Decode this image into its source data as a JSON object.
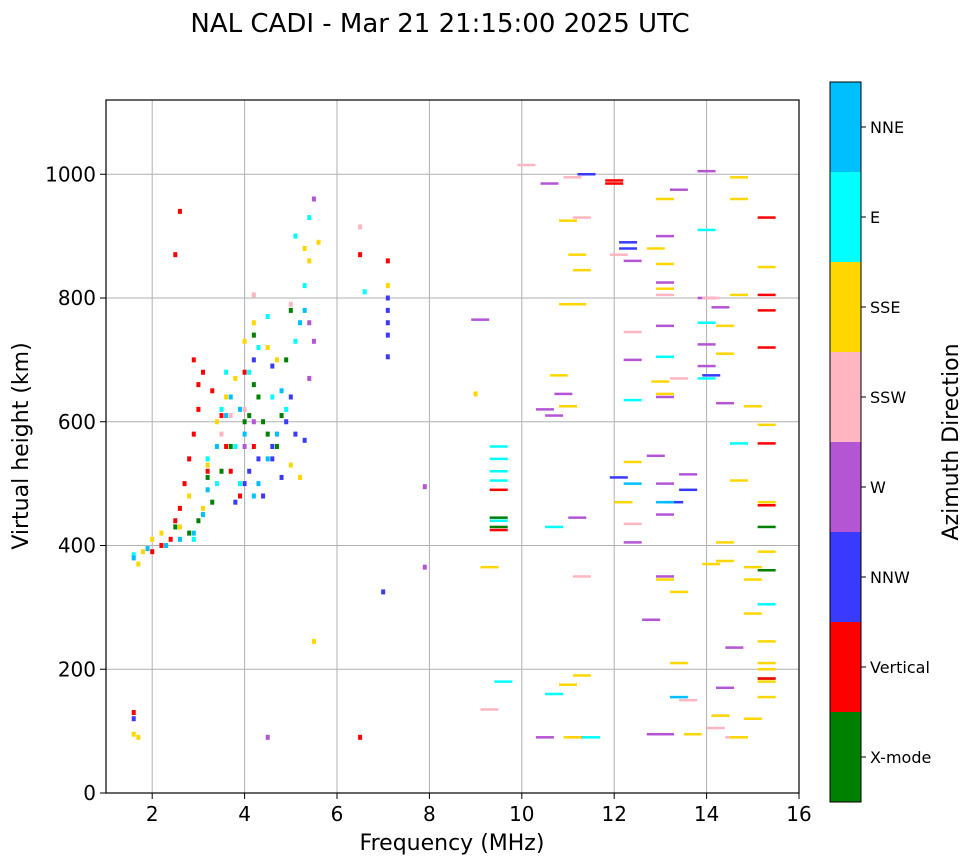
{
  "chart_data": {
    "type": "scatter",
    "title": "NAL CADI - Mar 21 21:15:00 2025 UTC",
    "xlabel": "Frequency (MHz)",
    "ylabel": "Virtual height (km)",
    "xlim": [
      1,
      16
    ],
    "ylim": [
      0,
      1120
    ],
    "xticks": [
      2,
      4,
      6,
      8,
      10,
      12,
      14,
      16
    ],
    "yticks": [
      0,
      200,
      400,
      600,
      800,
      1000
    ],
    "grid": true,
    "colorbar": {
      "label": "Azimuth Direction",
      "position": "right",
      "categories": [
        {
          "name": "X-mode",
          "color": "#008000"
        },
        {
          "name": "Vertical",
          "color": "#ff0000"
        },
        {
          "name": "NNW",
          "color": "#3a3aff"
        },
        {
          "name": "W",
          "color": "#b455d4"
        },
        {
          "name": "SSW",
          "color": "#ffb6c1"
        },
        {
          "name": "SSE",
          "color": "#ffd700"
        },
        {
          "name": "E",
          "color": "#00ffff"
        },
        {
          "name": "NNE",
          "color": "#00bfff"
        }
      ]
    },
    "series": [
      {
        "name": "X-mode",
        "points": [
          [
            2.8,
            420
          ],
          [
            3.0,
            440
          ],
          [
            3.3,
            470
          ],
          [
            3.5,
            520
          ],
          [
            3.7,
            560
          ],
          [
            4.0,
            600
          ],
          [
            4.1,
            610
          ],
          [
            4.2,
            660
          ],
          [
            4.3,
            640
          ],
          [
            4.4,
            600
          ],
          [
            4.5,
            580
          ],
          [
            4.7,
            560
          ],
          [
            4.8,
            610
          ],
          [
            4.9,
            700
          ],
          [
            5.0,
            780
          ],
          [
            2.3,
            400
          ],
          [
            2.5,
            430
          ],
          [
            3.2,
            510
          ],
          [
            9.5,
            430
          ],
          [
            9.5,
            445
          ],
          [
            15.3,
            430
          ],
          [
            15.3,
            360
          ],
          [
            15.3,
            185
          ],
          [
            4.2,
            740
          ]
        ]
      },
      {
        "name": "Vertical",
        "points": [
          [
            1.6,
            130
          ],
          [
            2.0,
            390
          ],
          [
            2.2,
            400
          ],
          [
            2.4,
            410
          ],
          [
            2.5,
            440
          ],
          [
            2.6,
            460
          ],
          [
            2.7,
            500
          ],
          [
            2.8,
            540
          ],
          [
            2.9,
            580
          ],
          [
            3.0,
            620
          ],
          [
            3.0,
            660
          ],
          [
            3.1,
            680
          ],
          [
            3.3,
            650
          ],
          [
            3.5,
            610
          ],
          [
            3.6,
            560
          ],
          [
            3.7,
            520
          ],
          [
            3.9,
            480
          ],
          [
            4.0,
            680
          ],
          [
            4.2,
            560
          ],
          [
            3.2,
            520
          ],
          [
            2.9,
            700
          ],
          [
            2.6,
            940
          ],
          [
            2.5,
            870
          ],
          [
            6.5,
            870
          ],
          [
            6.5,
            90
          ],
          [
            7.1,
            860
          ],
          [
            9.5,
            425
          ],
          [
            9.5,
            490
          ],
          [
            12.0,
            990
          ],
          [
            12.0,
            985
          ],
          [
            15.3,
            930
          ],
          [
            15.3,
            805
          ],
          [
            15.3,
            780
          ],
          [
            15.3,
            720
          ],
          [
            15.3,
            565
          ],
          [
            15.3,
            465
          ],
          [
            15.3,
            185
          ]
        ]
      },
      {
        "name": "NNW",
        "points": [
          [
            1.6,
            120
          ],
          [
            3.8,
            470
          ],
          [
            4.0,
            500
          ],
          [
            4.1,
            520
          ],
          [
            4.3,
            540
          ],
          [
            4.4,
            480
          ],
          [
            4.6,
            560
          ],
          [
            4.6,
            540
          ],
          [
            4.8,
            510
          ],
          [
            4.9,
            600
          ],
          [
            5.0,
            640
          ],
          [
            5.1,
            580
          ],
          [
            5.3,
            570
          ],
          [
            4.2,
            700
          ],
          [
            4.6,
            690
          ],
          [
            7.1,
            800
          ],
          [
            7.1,
            780
          ],
          [
            7.1,
            760
          ],
          [
            7.1,
            740
          ],
          [
            7.1,
            705
          ],
          [
            11.4,
            1000
          ],
          [
            12.3,
            890
          ],
          [
            12.3,
            880
          ],
          [
            12.1,
            510
          ],
          [
            13.3,
            470
          ],
          [
            13.6,
            490
          ],
          [
            14.1,
            675
          ],
          [
            7.0,
            325
          ]
        ]
      },
      {
        "name": "W",
        "points": [
          [
            4.0,
            560
          ],
          [
            4.2,
            600
          ],
          [
            5.4,
            760
          ],
          [
            5.5,
            730
          ],
          [
            5.5,
            960
          ],
          [
            5.4,
            670
          ],
          [
            4.5,
            90
          ],
          [
            7.9,
            495
          ],
          [
            7.9,
            365
          ],
          [
            9.1,
            765
          ],
          [
            10.5,
            620
          ],
          [
            10.6,
            985
          ],
          [
            10.7,
            610
          ],
          [
            10.9,
            645
          ],
          [
            11.2,
            445
          ],
          [
            12.4,
            700
          ],
          [
            12.4,
            860
          ],
          [
            12.4,
            405
          ],
          [
            12.8,
            280
          ],
          [
            12.9,
            545
          ],
          [
            13.1,
            900
          ],
          [
            13.1,
            825
          ],
          [
            13.1,
            755
          ],
          [
            13.1,
            640
          ],
          [
            13.1,
            500
          ],
          [
            13.1,
            450
          ],
          [
            13.1,
            350
          ],
          [
            13.1,
            95
          ],
          [
            13.4,
            975
          ],
          [
            13.6,
            515
          ],
          [
            14.0,
            1005
          ],
          [
            14.0,
            800
          ],
          [
            14.0,
            725
          ],
          [
            14.0,
            690
          ],
          [
            14.3,
            785
          ],
          [
            14.4,
            630
          ],
          [
            14.6,
            235
          ],
          [
            14.4,
            170
          ],
          [
            10.5,
            90
          ],
          [
            11.2,
            90
          ],
          [
            12.9,
            95
          ]
        ]
      },
      {
        "name": "SSW",
        "points": [
          [
            3.5,
            580
          ],
          [
            3.7,
            610
          ],
          [
            4.0,
            620
          ],
          [
            4.2,
            805
          ],
          [
            5.0,
            790
          ],
          [
            6.5,
            915
          ],
          [
            9.3,
            135
          ],
          [
            10.1,
            1015
          ],
          [
            11.1,
            995
          ],
          [
            11.3,
            930
          ],
          [
            11.3,
            350
          ],
          [
            12.1,
            870
          ],
          [
            12.4,
            745
          ],
          [
            12.4,
            435
          ],
          [
            13.1,
            805
          ],
          [
            13.4,
            670
          ],
          [
            13.6,
            150
          ],
          [
            14.1,
            800
          ],
          [
            14.2,
            105
          ],
          [
            14.3,
            125
          ],
          [
            14.6,
            90
          ]
        ]
      },
      {
        "name": "SSE",
        "points": [
          [
            1.6,
            95
          ],
          [
            1.7,
            90
          ],
          [
            1.7,
            370
          ],
          [
            1.8,
            390
          ],
          [
            2.0,
            410
          ],
          [
            2.2,
            420
          ],
          [
            2.6,
            430
          ],
          [
            2.8,
            480
          ],
          [
            3.1,
            460
          ],
          [
            3.2,
            530
          ],
          [
            3.4,
            600
          ],
          [
            3.6,
            640
          ],
          [
            3.8,
            670
          ],
          [
            4.0,
            730
          ],
          [
            4.2,
            760
          ],
          [
            4.5,
            720
          ],
          [
            4.7,
            700
          ],
          [
            5.0,
            530
          ],
          [
            5.2,
            510
          ],
          [
            5.3,
            880
          ],
          [
            5.4,
            860
          ],
          [
            5.6,
            890
          ],
          [
            5.5,
            245
          ],
          [
            7.1,
            820
          ],
          [
            9.0,
            645
          ],
          [
            9.3,
            365
          ],
          [
            10.8,
            675
          ],
          [
            11.0,
            925
          ],
          [
            11.0,
            790
          ],
          [
            11.0,
            625
          ],
          [
            11.0,
            175
          ],
          [
            11.1,
            90
          ],
          [
            11.2,
            790
          ],
          [
            11.2,
            870
          ],
          [
            11.3,
            845
          ],
          [
            11.3,
            190
          ],
          [
            12.2,
            470
          ],
          [
            12.4,
            535
          ],
          [
            12.9,
            880
          ],
          [
            13.0,
            665
          ],
          [
            13.1,
            960
          ],
          [
            13.1,
            855
          ],
          [
            13.1,
            815
          ],
          [
            13.1,
            645
          ],
          [
            13.1,
            345
          ],
          [
            13.4,
            325
          ],
          [
            13.4,
            210
          ],
          [
            13.7,
            95
          ],
          [
            14.1,
            370
          ],
          [
            14.3,
            125
          ],
          [
            14.4,
            755
          ],
          [
            14.4,
            710
          ],
          [
            14.4,
            405
          ],
          [
            14.4,
            375
          ],
          [
            14.7,
            995
          ],
          [
            14.7,
            960
          ],
          [
            14.7,
            805
          ],
          [
            14.7,
            505
          ],
          [
            14.7,
            90
          ],
          [
            15.0,
            625
          ],
          [
            15.0,
            365
          ],
          [
            15.0,
            345
          ],
          [
            15.0,
            290
          ],
          [
            15.0,
            120
          ],
          [
            15.3,
            850
          ],
          [
            15.3,
            595
          ],
          [
            15.3,
            470
          ],
          [
            15.3,
            390
          ],
          [
            15.3,
            245
          ],
          [
            15.3,
            210
          ],
          [
            15.3,
            200
          ],
          [
            15.3,
            180
          ],
          [
            15.3,
            155
          ]
        ]
      },
      {
        "name": "E",
        "points": [
          [
            1.6,
            385
          ],
          [
            2.9,
            410
          ],
          [
            3.2,
            540
          ],
          [
            3.4,
            500
          ],
          [
            3.5,
            620
          ],
          [
            3.6,
            680
          ],
          [
            3.8,
            560
          ],
          [
            3.9,
            500
          ],
          [
            4.1,
            680
          ],
          [
            4.3,
            720
          ],
          [
            4.5,
            770
          ],
          [
            4.6,
            640
          ],
          [
            4.9,
            620
          ],
          [
            5.1,
            730
          ],
          [
            5.1,
            900
          ],
          [
            5.3,
            820
          ],
          [
            5.4,
            930
          ],
          [
            6.6,
            810
          ],
          [
            9.5,
            560
          ],
          [
            9.5,
            540
          ],
          [
            9.5,
            520
          ],
          [
            9.5,
            505
          ],
          [
            9.5,
            440
          ],
          [
            9.6,
            180
          ],
          [
            10.7,
            430
          ],
          [
            10.7,
            160
          ],
          [
            11.5,
            90
          ],
          [
            12.4,
            635
          ],
          [
            13.1,
            705
          ],
          [
            14.0,
            910
          ],
          [
            14.0,
            760
          ],
          [
            14.0,
            670
          ],
          [
            14.7,
            565
          ],
          [
            15.3,
            305
          ]
        ]
      },
      {
        "name": "NNE",
        "points": [
          [
            1.6,
            380
          ],
          [
            1.9,
            395
          ],
          [
            2.3,
            400
          ],
          [
            2.6,
            410
          ],
          [
            2.9,
            420
          ],
          [
            3.1,
            450
          ],
          [
            3.2,
            490
          ],
          [
            3.4,
            560
          ],
          [
            3.6,
            610
          ],
          [
            3.7,
            640
          ],
          [
            3.9,
            620
          ],
          [
            4.0,
            580
          ],
          [
            4.2,
            480
          ],
          [
            4.3,
            500
          ],
          [
            4.5,
            540
          ],
          [
            4.7,
            580
          ],
          [
            4.8,
            650
          ],
          [
            5.3,
            780
          ],
          [
            5.2,
            760
          ],
          [
            12.4,
            500
          ],
          [
            13.1,
            470
          ],
          [
            13.4,
            155
          ]
        ]
      }
    ]
  }
}
